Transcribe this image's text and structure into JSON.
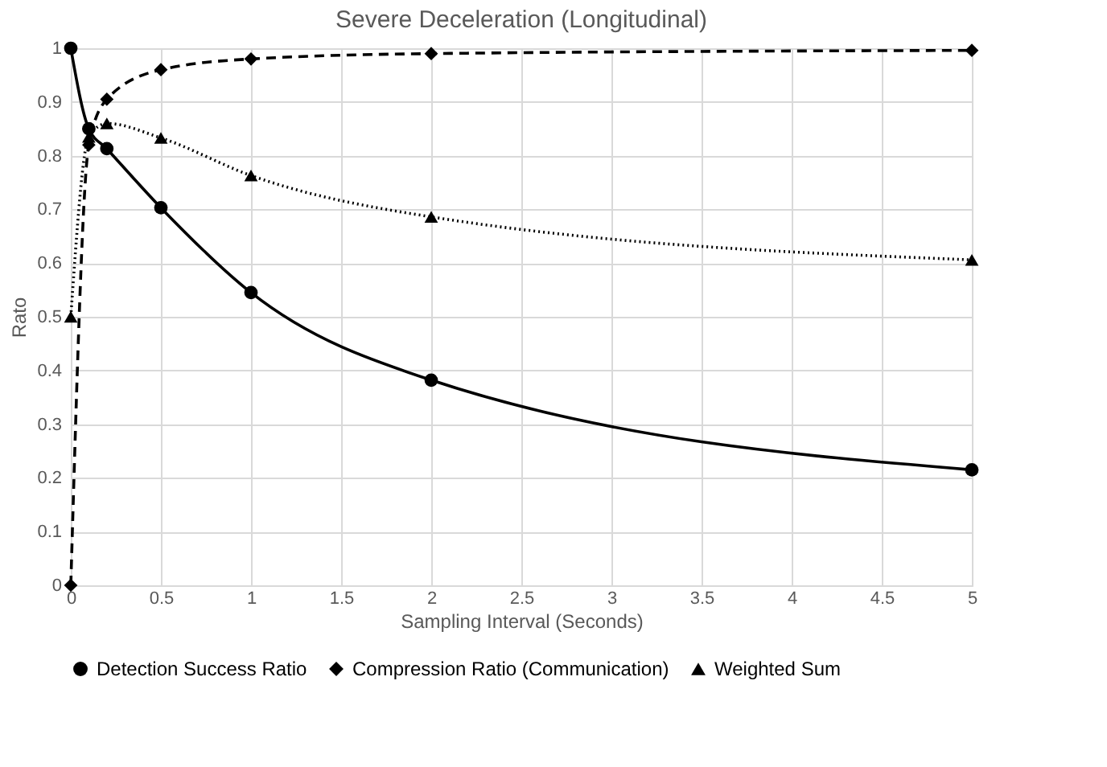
{
  "chart_data": {
    "type": "line",
    "title": "Severe Deceleration (Longitudinal)",
    "xlabel": "Sampling Interval (Seconds)",
    "ylabel": "Rato",
    "x": [
      0,
      0.1,
      0.2,
      0.5,
      1,
      2,
      5
    ],
    "series": [
      {
        "name": "Detection Success Ratio",
        "color": "#000000",
        "marker": "circle",
        "line_style": "solid",
        "values": [
          1,
          0.85,
          0.813,
          0.703,
          0.545,
          0.382,
          0.215
        ]
      },
      {
        "name": "Compression Ratio (Communication)",
        "color": "#000000",
        "marker": "diamond",
        "line_style": "dashed",
        "values": [
          0,
          0.82,
          0.905,
          0.96,
          0.98,
          0.99,
          0.996
        ]
      },
      {
        "name": "Weighted Sum",
        "color": "#000000",
        "marker": "triangle",
        "line_style": "dotted",
        "values": [
          0.5,
          0.835,
          0.86,
          0.833,
          0.763,
          0.686,
          0.606
        ]
      }
    ],
    "xlim": [
      0,
      5
    ],
    "xticks": [
      0,
      0.5,
      1,
      1.5,
      2,
      2.5,
      3,
      3.5,
      4,
      4.5,
      5
    ],
    "ylim": [
      0,
      1
    ],
    "yticks": [
      0,
      0.1,
      0.2,
      0.3,
      0.4,
      0.5,
      0.6,
      0.7,
      0.8,
      0.9,
      1
    ],
    "grid": true,
    "legend": "bottom"
  }
}
